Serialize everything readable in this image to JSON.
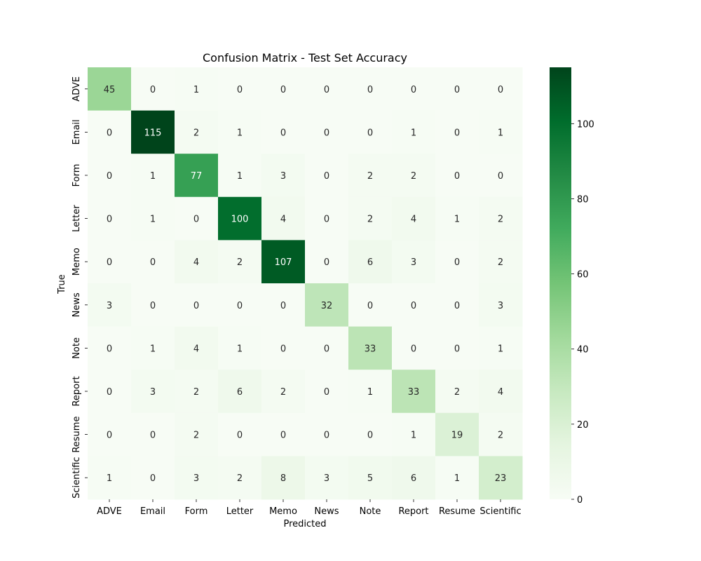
{
  "chart_data": {
    "type": "heatmap",
    "title": "Confusion Matrix - Test Set Accuracy",
    "xlabel": "Predicted",
    "ylabel": "True",
    "x_categories": [
      "ADVE",
      "Email",
      "Form",
      "Letter",
      "Memo",
      "News",
      "Note",
      "Report",
      "Resume",
      "Scientific"
    ],
    "y_categories": [
      "ADVE",
      "Email",
      "Form",
      "Letter",
      "Memo",
      "News",
      "Note",
      "Report",
      "Resume",
      "Scientific"
    ],
    "values": [
      [
        45,
        0,
        1,
        0,
        0,
        0,
        0,
        0,
        0,
        0
      ],
      [
        0,
        115,
        2,
        1,
        0,
        0,
        0,
        1,
        0,
        1
      ],
      [
        0,
        1,
        77,
        1,
        3,
        0,
        2,
        2,
        0,
        0
      ],
      [
        0,
        1,
        0,
        100,
        4,
        0,
        2,
        4,
        1,
        2
      ],
      [
        0,
        0,
        4,
        2,
        107,
        0,
        6,
        3,
        0,
        2
      ],
      [
        3,
        0,
        0,
        0,
        0,
        32,
        0,
        0,
        0,
        3
      ],
      [
        0,
        1,
        4,
        1,
        0,
        0,
        33,
        0,
        0,
        1
      ],
      [
        0,
        3,
        2,
        6,
        2,
        0,
        1,
        33,
        2,
        4
      ],
      [
        0,
        0,
        2,
        0,
        0,
        0,
        0,
        1,
        19,
        2
      ],
      [
        1,
        0,
        3,
        2,
        8,
        3,
        5,
        6,
        1,
        23
      ]
    ],
    "colorbar": {
      "min": 0,
      "max": 115,
      "ticks": [
        0,
        20,
        40,
        60,
        80,
        100
      ]
    },
    "colormap": "Greens",
    "colors": {
      "low": "#f7fcf5",
      "high": "#00441b"
    },
    "grid": false
  }
}
